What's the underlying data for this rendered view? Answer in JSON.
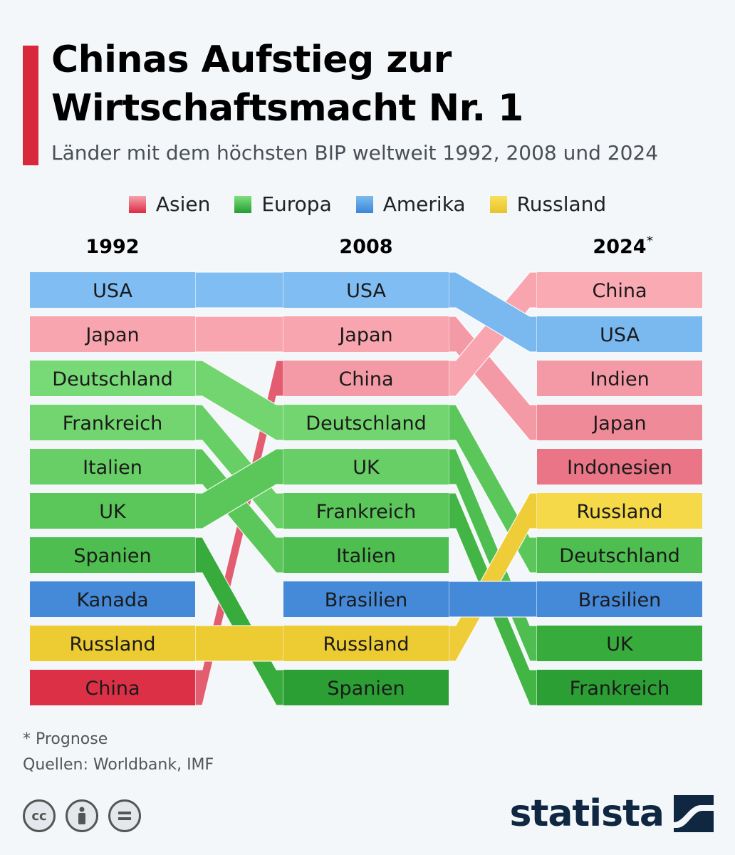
{
  "header": {
    "title_line1": "Chinas Aufstieg zur",
    "title_line2": "Wirtschaftsmacht Nr. 1",
    "subtitle": "Länder mit dem höchsten BIP weltweit 1992, 2008 und 2024"
  },
  "legend": [
    {
      "label": "Asien",
      "color_top": "#f5a3ae",
      "color_bottom": "#dd2c44"
    },
    {
      "label": "Europa",
      "color_top": "#7ee07b",
      "color_bottom": "#259c34"
    },
    {
      "label": "Amerika",
      "color_top": "#7bbcef",
      "color_bottom": "#3a85d8"
    },
    {
      "label": "Russland",
      "color_top": "#f7e15a",
      "color_bottom": "#e8c32a"
    }
  ],
  "chart_data": {
    "type": "bump",
    "title": "Chinas Aufstieg zur Wirtschaftsmacht Nr. 1",
    "subtitle": "Länder mit dem höchsten BIP weltweit 1992, 2008 und 2024",
    "years": [
      "1992",
      "2008",
      "2024"
    ],
    "year_marks": [
      "",
      "",
      "*"
    ],
    "rankings": {
      "1992": [
        "USA",
        "Japan",
        "Deutschland",
        "Frankreich",
        "Italien",
        "UK",
        "Spanien",
        "Kanada",
        "Russland",
        "China"
      ],
      "2008": [
        "USA",
        "Japan",
        "China",
        "Deutschland",
        "UK",
        "Frankreich",
        "Italien",
        "Brasilien",
        "Russland",
        "Spanien"
      ],
      "2024": [
        "China",
        "USA",
        "Indien",
        "Japan",
        "Indonesien",
        "Russland",
        "Deutschland",
        "Brasilien",
        "UK",
        "Frankreich"
      ]
    },
    "regions": {
      "USA": "Amerika",
      "Kanada": "Amerika",
      "Brasilien": "Amerika",
      "Japan": "Asien",
      "China": "Asien",
      "Indien": "Asien",
      "Indonesien": "Asien",
      "Deutschland": "Europa",
      "Frankreich": "Europa",
      "Italien": "Europa",
      "UK": "Europa",
      "Spanien": "Europa",
      "Russland": "Russland"
    },
    "colors_by_rank": {
      "Asien": [
        "#f9aab3",
        "#f8a5af",
        "#f39aa6",
        "#ef8a98",
        "#ea7586",
        "#e66a7b",
        "#e35d70",
        "#e05165",
        "#de475c",
        "#dc3047"
      ],
      "Europa": [
        "#85e382",
        "#7fde7c",
        "#78da76",
        "#72d56f",
        "#68cf66",
        "#5bc75b",
        "#4dbe4f",
        "#42b545",
        "#37ab3c",
        "#2c9f34"
      ],
      "Amerika": [
        "#80bdf2",
        "#7ab8f0",
        "#72b1ec",
        "#6aaae8",
        "#60a1e4",
        "#5698e0",
        "#4e91dd",
        "#4589d9",
        "#3f83d6",
        "#3a7ed3"
      ],
      "Russland": [
        "#f8e25c",
        "#f8e25c",
        "#f7df55",
        "#f6dc50",
        "#f5d94a",
        "#f5d949",
        "#f2d340",
        "#efcd38",
        "#eccb33",
        "#e9c730"
      ]
    },
    "axes": {
      "x": "categorical years",
      "y": "rank 1-10 (1 = highest GDP)"
    },
    "legend_position": "top-center",
    "grid": false
  },
  "footer": {
    "note": "* Prognose",
    "sources": "Quellen: Worldbank, IMF",
    "brand": "statista",
    "license_icons": [
      "cc",
      "by",
      "nd"
    ]
  }
}
